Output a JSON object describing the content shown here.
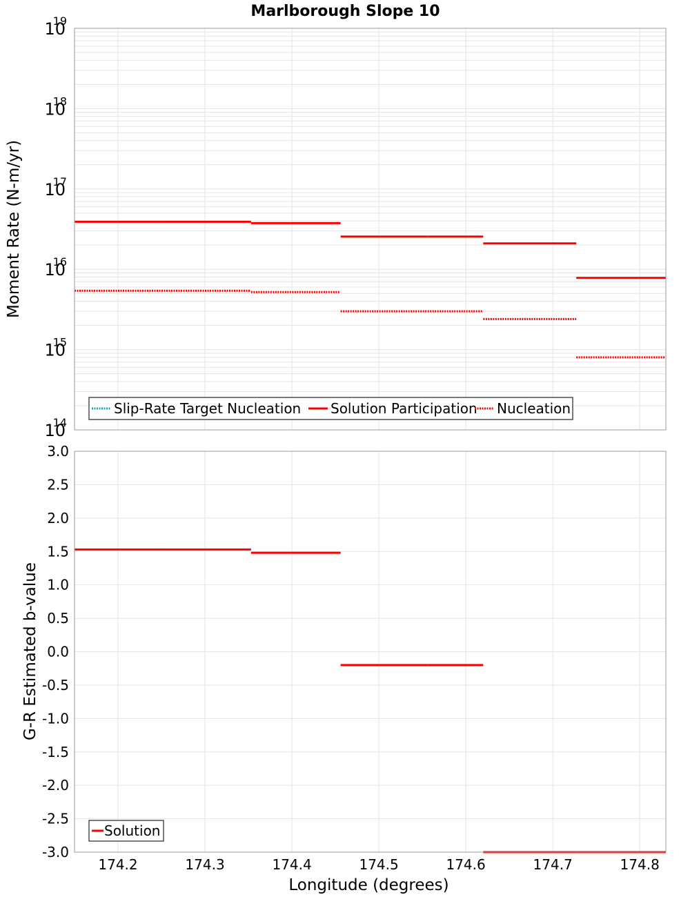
{
  "colors": {
    "target": "#11aab5",
    "solution": "#ff0000",
    "nucleation": "#ff0000",
    "grid": "#e4e4e4",
    "frame": "#9a9a9a"
  },
  "chart_data": [
    {
      "type": "line",
      "title": "Marlborough Slope 10",
      "xlabel": "",
      "ylabel": "Moment Rate (N-m/yr)",
      "yscale": "log",
      "xlim": [
        174.15,
        174.83
      ],
      "ylim": [
        100000000000000.0,
        1e+19
      ],
      "ytick_base": "10",
      "ytick_exponents": [
        "14",
        "15",
        "16",
        "17",
        "18",
        "19"
      ],
      "legend": {
        "placement": "bottom-left",
        "entries": [
          {
            "label": "Slip-Rate Target Nucleation",
            "style": "dotted",
            "color": "#11aab5"
          },
          {
            "label": "Solution Participation",
            "style": "solid",
            "color": "#ff0000"
          },
          {
            "label": "Nucleation",
            "style": "dotted",
            "color": "#ff0000"
          }
        ]
      },
      "series": [
        {
          "name": "Solution Participation",
          "style": "solid",
          "segments": [
            {
              "x0": 174.15,
              "x1": 174.25,
              "y": 3.9e+16
            },
            {
              "x0": 174.25,
              "x1": 174.353,
              "y": 3.9e+16
            },
            {
              "x0": 174.353,
              "x1": 174.456,
              "y": 3.75e+16
            },
            {
              "x0": 174.456,
              "x1": 174.556,
              "y": 2.55e+16
            },
            {
              "x0": 174.556,
              "x1": 174.62,
              "y": 2.55e+16
            },
            {
              "x0": 174.62,
              "x1": 174.727,
              "y": 2.1e+16
            },
            {
              "x0": 174.727,
              "x1": 174.83,
              "y": 7800000000000000.0
            }
          ]
        },
        {
          "name": "Nucleation",
          "style": "dotted",
          "segments": [
            {
              "x0": 174.15,
              "x1": 174.25,
              "y": 5400000000000000.0
            },
            {
              "x0": 174.25,
              "x1": 174.353,
              "y": 5400000000000000.0
            },
            {
              "x0": 174.353,
              "x1": 174.456,
              "y": 5200000000000000.0
            },
            {
              "x0": 174.456,
              "x1": 174.556,
              "y": 3000000000000000.0
            },
            {
              "x0": 174.556,
              "x1": 174.62,
              "y": 3000000000000000.0
            },
            {
              "x0": 174.62,
              "x1": 174.727,
              "y": 2400000000000000.0
            },
            {
              "x0": 174.727,
              "x1": 174.83,
              "y": 800000000000000.0
            }
          ]
        }
      ]
    },
    {
      "type": "line",
      "title": "",
      "xlabel": "Longitude (degrees)",
      "ylabel": "G-R Estimated b-value",
      "xlim": [
        174.15,
        174.83
      ],
      "ylim": [
        -3.0,
        3.0
      ],
      "xticks": [
        174.2,
        174.3,
        174.4,
        174.5,
        174.6,
        174.7,
        174.8
      ],
      "xtick_labels": [
        "174.2",
        "174.3",
        "174.4",
        "174.5",
        "174.6",
        "174.7",
        "174.8"
      ],
      "yticks": [
        3.0,
        2.5,
        2.0,
        1.5,
        1.0,
        0.5,
        0.0,
        -0.5,
        -1.0,
        -1.5,
        -2.0,
        -2.5,
        -3.0
      ],
      "ytick_labels": [
        "3.0",
        "2.5",
        "2.0",
        "1.5",
        "1.0",
        "0.5",
        "0.0",
        "-0.5",
        "-1.0",
        "-1.5",
        "-2.0",
        "-2.5",
        "-3.0"
      ],
      "legend": {
        "placement": "bottom-left",
        "entries": [
          {
            "label": "Solution",
            "style": "solid",
            "color": "#ff0000"
          }
        ]
      },
      "series": [
        {
          "name": "Solution",
          "style": "solid",
          "segments": [
            {
              "x0": 174.15,
              "x1": 174.25,
              "y": 1.53
            },
            {
              "x0": 174.25,
              "x1": 174.353,
              "y": 1.53
            },
            {
              "x0": 174.353,
              "x1": 174.456,
              "y": 1.48
            },
            {
              "x0": 174.456,
              "x1": 174.556,
              "y": -0.2
            },
            {
              "x0": 174.556,
              "x1": 174.62,
              "y": -0.2
            },
            {
              "x0": 174.62,
              "x1": 174.727,
              "y": -3.0
            },
            {
              "x0": 174.727,
              "x1": 174.83,
              "y": -3.0
            }
          ]
        }
      ]
    }
  ]
}
